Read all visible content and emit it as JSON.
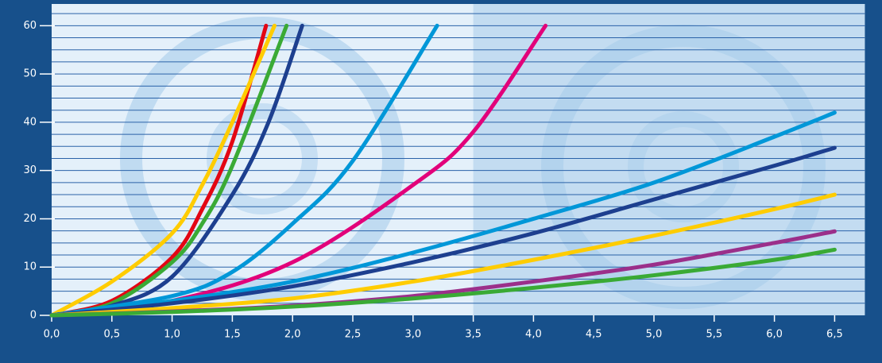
{
  "chart_data": {
    "type": "line",
    "xlim": [
      0,
      6.75
    ],
    "ylim": [
      0,
      64.5
    ],
    "xticks": [
      {
        "value": 0,
        "label": "0,0"
      },
      {
        "value": 0.5,
        "label": "0,5"
      },
      {
        "value": 1,
        "label": "1,0"
      },
      {
        "value": 1.5,
        "label": "1,5"
      },
      {
        "value": 2,
        "label": "2,0"
      },
      {
        "value": 2.5,
        "label": "2,5"
      },
      {
        "value": 3,
        "label": "3,0"
      },
      {
        "value": 3.5,
        "label": "3,5"
      },
      {
        "value": 4,
        "label": "4,0"
      },
      {
        "value": 4.5,
        "label": "4,5"
      },
      {
        "value": 5,
        "label": "5,0"
      },
      {
        "value": 5.5,
        "label": "5,5"
      },
      {
        "value": 6,
        "label": "6,0"
      },
      {
        "value": 6.5,
        "label": "6,5"
      }
    ],
    "yticks": [
      0,
      10,
      20,
      30,
      40,
      50,
      60
    ],
    "grid_lines": [
      2.5,
      5,
      7.5,
      10,
      12.5,
      15,
      17.5,
      20,
      22.5,
      25,
      27.5,
      30,
      32.5,
      35,
      37.5,
      40,
      42.5,
      45,
      47.5,
      50,
      52.5,
      55,
      57.5,
      60,
      62.5
    ],
    "shade_from": 3.5,
    "series": [
      {
        "color": "#e30613",
        "x": [
          0,
          0.5,
          1,
          1.25,
          1.5,
          1.78
        ],
        "values": [
          0,
          3,
          12,
          22,
          36,
          60
        ]
      },
      {
        "color": "#ffcc00",
        "x": [
          0,
          0.5,
          1,
          1.25,
          1.5,
          1.85
        ],
        "values": [
          0,
          7,
          17,
          27,
          40,
          60
        ]
      },
      {
        "color": "#3aaa35",
        "x": [
          0,
          0.5,
          1,
          1.25,
          1.5,
          1.95
        ],
        "values": [
          0,
          2.5,
          11,
          19,
          31,
          60
        ]
      },
      {
        "color": "#1d3f8f",
        "x": [
          0,
          0.5,
          1,
          1.5,
          1.8,
          2.08
        ],
        "values": [
          0,
          2,
          8,
          25,
          40,
          60
        ]
      },
      {
        "color": "#0097d8",
        "x": [
          0,
          1,
          1.5,
          2,
          2.5,
          3.2
        ],
        "values": [
          0,
          4,
          9,
          19,
          32,
          60
        ]
      },
      {
        "color": "#e2007a",
        "x": [
          0,
          1,
          2,
          3,
          3.5,
          4.1
        ],
        "values": [
          0,
          3,
          11,
          27,
          38,
          60
        ]
      },
      {
        "color": "#0097d8",
        "x": [
          0,
          1,
          2,
          3,
          4,
          5,
          6,
          6.5
        ],
        "values": [
          0,
          3,
          7,
          13,
          20,
          27.5,
          37,
          42
        ]
      },
      {
        "color": "#1d3f8f",
        "x": [
          0,
          1,
          2,
          3,
          4,
          5,
          6,
          6.5
        ],
        "values": [
          0,
          2.5,
          6,
          11,
          17,
          24,
          31,
          34.7
        ]
      },
      {
        "color": "#ffcc00",
        "x": [
          0,
          1,
          2,
          3,
          4,
          5,
          6,
          6.5
        ],
        "values": [
          0,
          1.5,
          3.5,
          7,
          11.5,
          16.5,
          22,
          25
        ]
      },
      {
        "color": "#9b2f8a",
        "x": [
          0,
          1,
          2,
          3,
          4,
          5,
          6,
          6.5
        ],
        "values": [
          0,
          0.8,
          2,
          4,
          7,
          10.5,
          15,
          17.4
        ]
      },
      {
        "color": "#3aaa35",
        "x": [
          0,
          1,
          2,
          3,
          4,
          5,
          6,
          6.5
        ],
        "values": [
          0,
          0.7,
          1.8,
          3.5,
          5.7,
          8.3,
          11.5,
          13.6
        ]
      }
    ]
  }
}
